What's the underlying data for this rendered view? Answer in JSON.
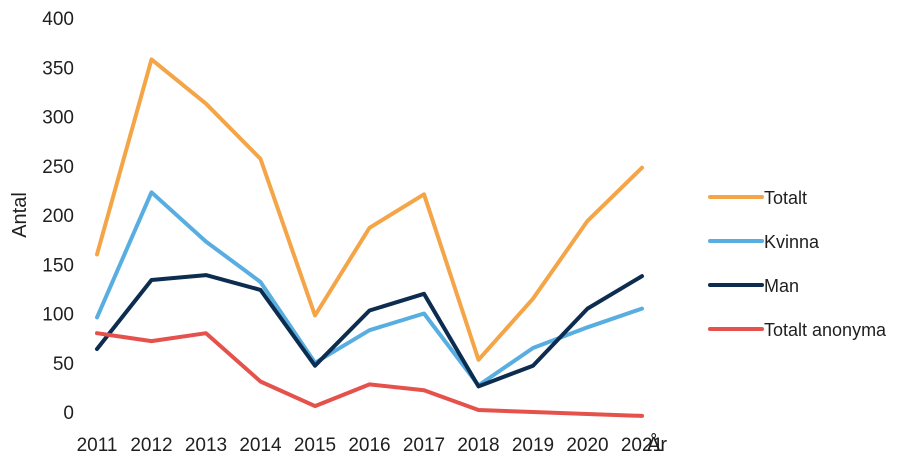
{
  "chart_data": {
    "type": "line",
    "title": "",
    "xlabel": "År",
    "ylabel": "Antal",
    "x": [
      "2011",
      "2012",
      "2013",
      "2014",
      "2015",
      "2016",
      "2017",
      "2018",
      "2019",
      "2020",
      "2021"
    ],
    "ylim": [
      0,
      400
    ],
    "yticks": [
      "0",
      "50",
      "100",
      "150",
      "200",
      "250",
      "300",
      "350",
      "400"
    ],
    "grid": false,
    "legend": "right",
    "series": [
      {
        "name": "Totalt",
        "color": "#f4a547",
        "values": [
          160,
          358,
          313,
          257,
          98,
          187,
          221,
          53,
          115,
          194,
          248
        ]
      },
      {
        "name": "Kvinna",
        "color": "#58aee0",
        "values": [
          96,
          223,
          173,
          132,
          50,
          83,
          100,
          27,
          65,
          86,
          105
        ]
      },
      {
        "name": "Man",
        "color": "#0c2d4f",
        "values": [
          64,
          134,
          139,
          124,
          47,
          103,
          120,
          26,
          47,
          105,
          138
        ]
      },
      {
        "name": "Totalt anonyma",
        "color": "#e5514b",
        "values": [
          80,
          72,
          80,
          31,
          6,
          28,
          22,
          2,
          0,
          -2,
          -4
        ]
      }
    ]
  }
}
